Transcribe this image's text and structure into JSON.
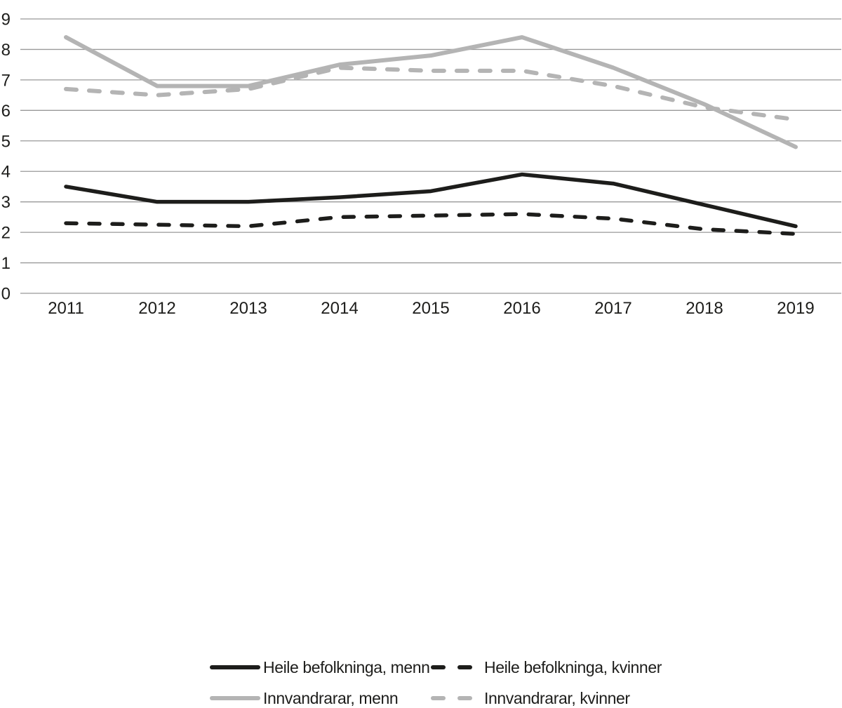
{
  "colors": {
    "background": "#ffffff",
    "grid": "#999999",
    "text": "#1d1d1b",
    "series_black": "#1d1d1b",
    "series_gray": "#b4b4b4"
  },
  "chart_data": {
    "type": "line",
    "title": "",
    "xlabel": "",
    "ylabel": "",
    "x": [
      "2011",
      "2012",
      "2013",
      "2014",
      "2015",
      "2016",
      "2017",
      "2018",
      "2019"
    ],
    "series": [
      {
        "name": "Heile befolkninga, menn",
        "color": "#1d1d1b",
        "style": "solid",
        "values": [
          3.5,
          3.0,
          3.0,
          3.15,
          3.35,
          3.9,
          3.6,
          2.9,
          2.2
        ]
      },
      {
        "name": "Heile befolkninga, kvinner",
        "color": "#1d1d1b",
        "style": "dashed",
        "values": [
          2.3,
          2.25,
          2.2,
          2.5,
          2.55,
          2.6,
          2.45,
          2.1,
          1.95
        ]
      },
      {
        "name": "Innvandrarar, menn",
        "color": "#b4b4b4",
        "style": "solid",
        "values": [
          8.4,
          6.8,
          6.8,
          7.5,
          7.8,
          8.4,
          7.4,
          6.2,
          4.8
        ]
      },
      {
        "name": "Innvandrarar, kvinner",
        "color": "#b4b4b4",
        "style": "dashed",
        "values": [
          6.7,
          6.5,
          6.7,
          7.4,
          7.3,
          7.3,
          6.8,
          6.1,
          5.7
        ]
      }
    ],
    "ylim": [
      0,
      9
    ],
    "yticks": [
      0,
      1,
      2,
      3,
      4,
      5,
      6,
      7,
      8,
      9
    ],
    "grid": true,
    "legend_position": "bottom"
  }
}
